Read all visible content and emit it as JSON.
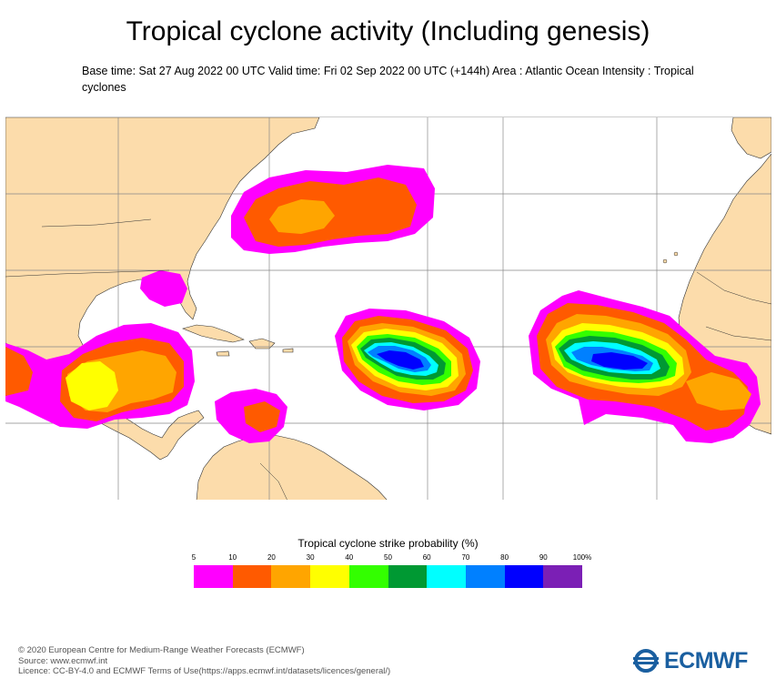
{
  "title": "Tropical cyclone activity (Including genesis)",
  "subtitle": "Base time: Sat 27 Aug 2022 00 UTC Valid time: Fri 02 Sep 2022 00 UTC (+144h) Area : Atlantic Ocean Intensity : Tropical cyclones",
  "legend": {
    "title": "Tropical cyclone strike probability (%)",
    "ticks": [
      "5",
      "10",
      "20",
      "30",
      "40",
      "50",
      "60",
      "70",
      "80",
      "90",
      "100%"
    ],
    "colors": [
      "#ff00ff",
      "#ff5a00",
      "#ffa500",
      "#ffff00",
      "#33ff00",
      "#009933",
      "#00ffff",
      "#0080ff",
      "#0000ff",
      "#7b1fb5"
    ]
  },
  "map": {
    "land_color": "#fcdcab",
    "ocean_color": "#ffffff",
    "border_color": "#333333",
    "grid_color": "#888888"
  },
  "footer": {
    "line1": "© 2020 European Centre for Medium-Range Weather Forecasts (ECMWF)",
    "line2": "Source: www.ecmwf.int",
    "line3": "Licence: CC-BY-4.0 and ECMWF Terms of Use(https://apps.ecmwf.int/datasets/licences/general/)"
  },
  "logo": {
    "text": "ECMWF",
    "icon": "ecmwf-logo-icon",
    "color": "#1a5fa0"
  }
}
